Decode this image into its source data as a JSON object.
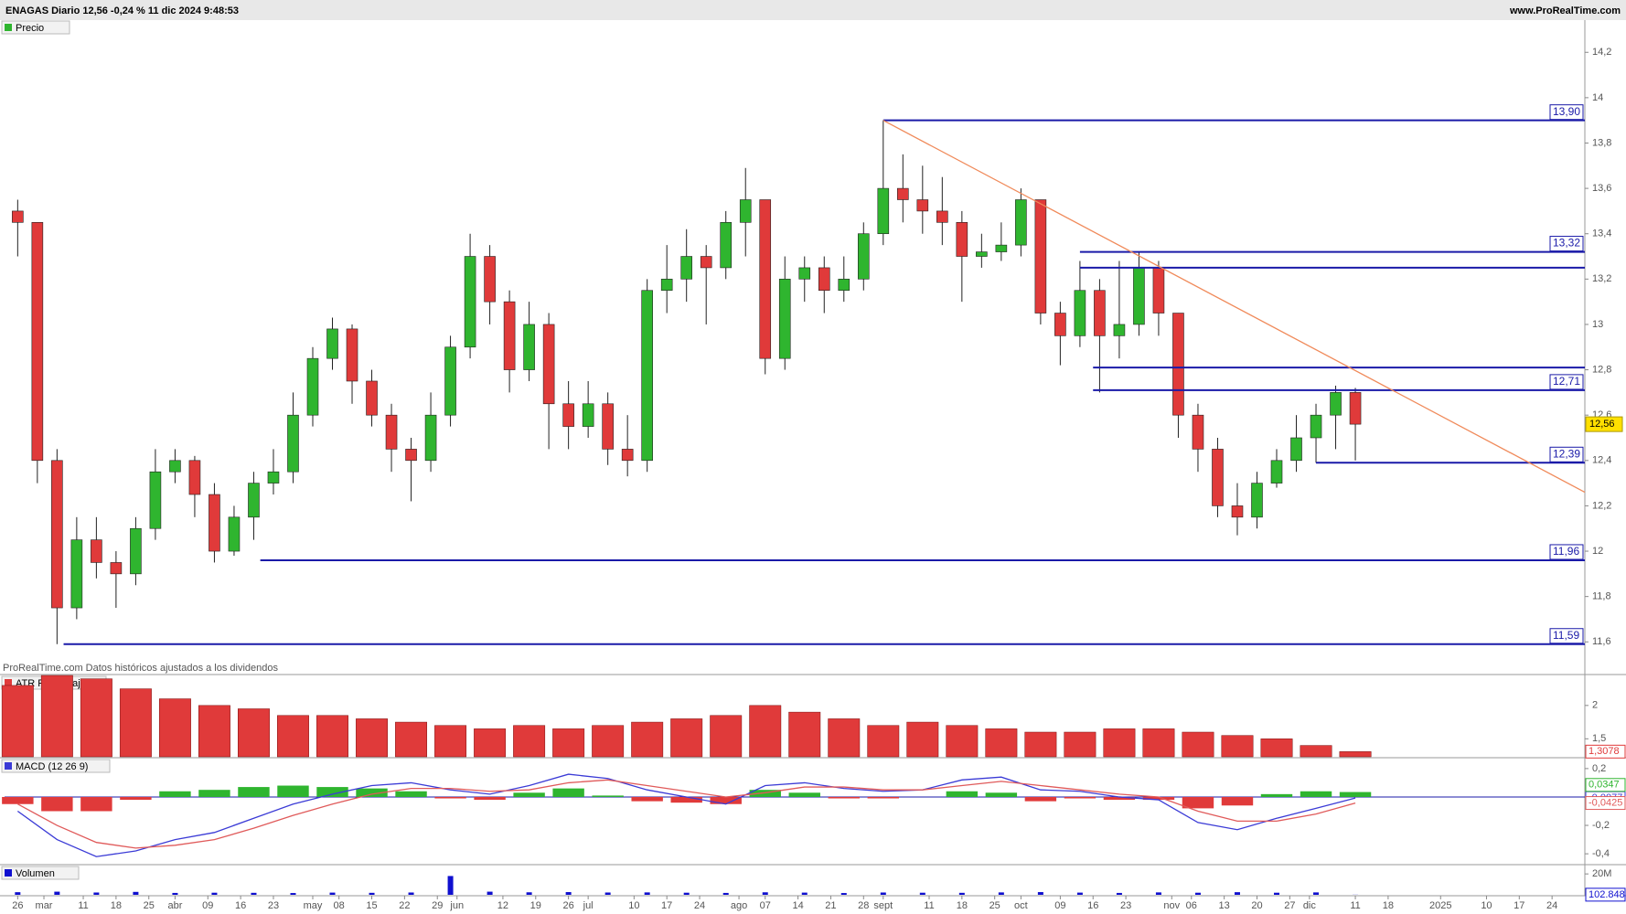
{
  "header": {
    "title": "ENAGAS Diario 12,56 -0,24 % 11 dic 2024 9:48:53",
    "site": "www.ProRealTime.com"
  },
  "chart_data": [
    {
      "type": "candlestick",
      "title": "Precio",
      "note": "ProRealTime.com Datos históricos ajustados a los dividendos",
      "up_color": "#2fb52f",
      "down_color": "#e03a3a",
      "level_color": "#1a1aa8",
      "trend_color": "#f08a5a",
      "xlim": [
        -2,
        239
      ],
      "ylim": [
        11.46,
        14.33
      ],
      "yticks": [
        {
          "value": 11.6,
          "label": "11,6"
        },
        {
          "value": 11.8,
          "label": "11,8"
        },
        12,
        {
          "value": 12.2,
          "label": "12,2"
        },
        {
          "value": 12.4,
          "label": "12,4"
        },
        {
          "value": 12.6,
          "label": "12,6"
        },
        {
          "value": 12.8,
          "label": "12,8"
        },
        13,
        {
          "value": 13.2,
          "label": "13,2"
        },
        {
          "value": 13.4,
          "label": "13,4"
        },
        {
          "value": 13.6,
          "label": "13,6"
        },
        {
          "value": 13.8,
          "label": "13,8"
        },
        14,
        {
          "value": 14.2,
          "label": "14,2"
        }
      ],
      "x": [
        0,
        3,
        6,
        9,
        12,
        15,
        18,
        21,
        24,
        27,
        30,
        33,
        36,
        39,
        42,
        45,
        48,
        51,
        54,
        57,
        60,
        63,
        66,
        69,
        72,
        75,
        78,
        81,
        84,
        87,
        90,
        93,
        96,
        99,
        102,
        105,
        108,
        111,
        114,
        117,
        120,
        123,
        126,
        129,
        132,
        135,
        138,
        141,
        144,
        147,
        150,
        153,
        156,
        159,
        162,
        165,
        168,
        171,
        174,
        177,
        180,
        183,
        186,
        189,
        192,
        195,
        198,
        201,
        204
      ],
      "open": [
        13.5,
        13.45,
        12.4,
        11.75,
        12.05,
        11.95,
        11.9,
        12.1,
        12.35,
        12.4,
        12.25,
        12.0,
        12.15,
        12.3,
        12.35,
        12.6,
        12.85,
        12.98,
        12.75,
        12.6,
        12.45,
        12.4,
        12.6,
        12.9,
        13.3,
        13.1,
        12.8,
        13.0,
        12.65,
        12.55,
        12.65,
        12.45,
        12.4,
        13.15,
        13.2,
        13.3,
        13.25,
        13.45,
        13.55,
        12.85,
        13.2,
        13.25,
        13.15,
        13.2,
        13.4,
        13.6,
        13.55,
        13.5,
        13.45,
        13.3,
        13.32,
        13.35,
        13.55,
        13.05,
        12.95,
        13.15,
        12.95,
        13.0,
        13.25,
        13.05,
        12.6,
        12.45,
        12.2,
        12.15,
        12.3,
        12.4,
        12.5,
        12.6,
        12.7
      ],
      "high": [
        13.55,
        13.45,
        12.45,
        12.15,
        12.15,
        12.0,
        12.15,
        12.45,
        12.45,
        12.42,
        12.3,
        12.2,
        12.35,
        12.45,
        12.7,
        12.9,
        13.03,
        13.0,
        12.8,
        12.65,
        12.5,
        12.7,
        12.95,
        13.4,
        13.35,
        13.15,
        13.1,
        13.05,
        12.75,
        12.75,
        12.7,
        12.6,
        13.2,
        13.35,
        13.42,
        13.35,
        13.5,
        13.69,
        13.55,
        13.3,
        13.3,
        13.3,
        13.3,
        13.45,
        13.9,
        13.75,
        13.7,
        13.65,
        13.5,
        13.4,
        13.45,
        13.6,
        13.55,
        13.1,
        13.28,
        13.2,
        13.28,
        13.32,
        13.28,
        13.05,
        12.65,
        12.5,
        12.3,
        12.35,
        12.45,
        12.6,
        12.65,
        12.73,
        12.72
      ],
      "low": [
        13.3,
        12.3,
        11.59,
        11.7,
        11.88,
        11.75,
        11.85,
        12.05,
        12.3,
        12.15,
        11.95,
        11.98,
        12.05,
        12.25,
        12.3,
        12.55,
        12.8,
        12.65,
        12.55,
        12.35,
        12.22,
        12.35,
        12.55,
        12.85,
        13.0,
        12.7,
        12.75,
        12.45,
        12.45,
        12.5,
        12.38,
        12.33,
        12.35,
        13.05,
        13.1,
        13.0,
        13.2,
        13.3,
        12.78,
        12.8,
        13.1,
        13.05,
        13.1,
        13.15,
        13.35,
        13.45,
        13.4,
        13.35,
        13.1,
        13.25,
        13.28,
        13.3,
        13.0,
        12.82,
        12.9,
        12.7,
        12.85,
        12.95,
        12.95,
        12.5,
        12.35,
        12.15,
        12.07,
        12.1,
        12.28,
        12.35,
        12.39,
        12.45,
        12.4
      ],
      "close": [
        13.45,
        12.4,
        11.75,
        12.05,
        11.95,
        11.9,
        12.1,
        12.35,
        12.4,
        12.25,
        12.0,
        12.15,
        12.3,
        12.35,
        12.6,
        12.85,
        12.98,
        12.75,
        12.6,
        12.45,
        12.4,
        12.6,
        12.9,
        13.3,
        13.1,
        12.8,
        13.0,
        12.65,
        12.55,
        12.65,
        12.45,
        12.4,
        13.15,
        13.2,
        13.3,
        13.25,
        13.45,
        13.55,
        12.85,
        13.2,
        13.25,
        13.15,
        13.2,
        13.4,
        13.6,
        13.55,
        13.5,
        13.45,
        13.3,
        13.32,
        13.35,
        13.55,
        13.05,
        12.95,
        13.15,
        12.95,
        13.0,
        13.25,
        13.05,
        12.6,
        12.45,
        12.2,
        12.15,
        12.3,
        12.4,
        12.5,
        12.6,
        12.7,
        12.56
      ],
      "levels": [
        {
          "value": 13.9,
          "label": "13,90",
          "from": 132
        },
        {
          "value": 13.32,
          "label": "13,32",
          "from": 162
        },
        {
          "value": 13.25,
          "from": 162
        },
        {
          "value": 12.81,
          "from": 164
        },
        {
          "value": 12.71,
          "label": "12,71",
          "from": 164
        },
        {
          "value": 12.39,
          "label": "12,39",
          "from": 198
        },
        {
          "value": 11.96,
          "label": "11,96",
          "from": 37
        },
        {
          "value": 11.59,
          "label": "11,59",
          "from": 7
        }
      ],
      "trend": {
        "x": [
          132,
          239
        ],
        "y": [
          13.9,
          12.26
        ]
      },
      "last": {
        "value": 12.56,
        "label": "12,56"
      }
    },
    {
      "type": "bar",
      "title": "ATR Porcentaje",
      "color": "#e03a3a",
      "xlim": [
        -2,
        239
      ],
      "ylim": [
        1.23,
        2.45
      ],
      "yticks": [
        {
          "value": 1.5,
          "label": "1,5"
        },
        2
      ],
      "x": [
        0,
        6,
        12,
        18,
        24,
        30,
        36,
        42,
        48,
        54,
        60,
        66,
        72,
        78,
        84,
        90,
        96,
        102,
        108,
        114,
        120,
        126,
        132,
        138,
        144,
        150,
        156,
        162,
        168,
        174,
        180,
        186,
        192,
        198,
        204
      ],
      "values": [
        2.3,
        2.45,
        2.4,
        2.25,
        2.1,
        2.0,
        1.95,
        1.85,
        1.85,
        1.8,
        1.75,
        1.7,
        1.65,
        1.7,
        1.65,
        1.7,
        1.75,
        1.8,
        1.85,
        2.0,
        1.9,
        1.8,
        1.7,
        1.75,
        1.7,
        1.65,
        1.6,
        1.6,
        1.65,
        1.65,
        1.6,
        1.55,
        1.5,
        1.4,
        1.3078
      ],
      "last_label": "1,3078"
    },
    {
      "type": "macd",
      "title": "MACD (12 26 9)",
      "zero_color": "#1a1aa8",
      "xlim": [
        -2,
        239
      ],
      "ylim": [
        -0.47,
        0.27
      ],
      "yticks": [
        {
          "value": -0.4,
          "label": "-0,4"
        },
        {
          "value": -0.2,
          "label": "-0,2"
        },
        0,
        {
          "value": 0.2,
          "label": "0,2"
        }
      ],
      "x": [
        0,
        6,
        12,
        18,
        24,
        30,
        36,
        42,
        48,
        54,
        60,
        66,
        72,
        78,
        84,
        90,
        96,
        102,
        108,
        114,
        120,
        126,
        132,
        138,
        144,
        150,
        156,
        162,
        168,
        174,
        180,
        186,
        192,
        198,
        204
      ],
      "series": [
        {
          "name": "MACD",
          "color": "#3b3bd6",
          "values": [
            -0.1,
            -0.3,
            -0.42,
            -0.38,
            -0.3,
            -0.25,
            -0.15,
            -0.05,
            0.02,
            0.08,
            0.1,
            0.05,
            0.02,
            0.08,
            0.16,
            0.13,
            0.05,
            0.0,
            -0.05,
            0.08,
            0.1,
            0.06,
            0.04,
            0.05,
            0.12,
            0.14,
            0.05,
            0.04,
            0.0,
            -0.02,
            -0.18,
            -0.23,
            -0.15,
            -0.08,
            -0.0077
          ],
          "last_label": "-0,0077"
        },
        {
          "name": "Señal",
          "color": "#e05a5a",
          "values": [
            -0.05,
            -0.2,
            -0.32,
            -0.36,
            -0.34,
            -0.3,
            -0.22,
            -0.13,
            -0.05,
            0.02,
            0.06,
            0.06,
            0.04,
            0.05,
            0.1,
            0.12,
            0.08,
            0.04,
            0.0,
            0.03,
            0.07,
            0.07,
            0.05,
            0.05,
            0.08,
            0.11,
            0.08,
            0.05,
            0.02,
            0.0,
            -0.1,
            -0.17,
            -0.17,
            -0.12,
            -0.0425
          ],
          "last_label": "-0,0425"
        }
      ],
      "histogram": {
        "pos_color": "#2fb52f",
        "neg_color": "#e03a3a",
        "values": [
          -0.05,
          -0.1,
          -0.1,
          -0.02,
          0.04,
          0.05,
          0.07,
          0.08,
          0.07,
          0.06,
          0.04,
          -0.01,
          -0.02,
          0.03,
          0.06,
          0.01,
          -0.03,
          -0.04,
          -0.05,
          0.05,
          0.03,
          -0.01,
          -0.01,
          0.0,
          0.04,
          0.03,
          -0.03,
          -0.01,
          -0.02,
          -0.02,
          -0.08,
          -0.06,
          0.02,
          0.04,
          0.0347
        ],
        "last_label": "0,0347"
      }
    },
    {
      "type": "bar",
      "title": "Volumen",
      "color": "#1010d0",
      "xlim": [
        -2,
        239
      ],
      "ylim": [
        0,
        28000000
      ],
      "yticks": [
        {
          "value": 20000000,
          "label": "20M"
        }
      ],
      "x": [
        0,
        6,
        12,
        18,
        24,
        30,
        36,
        42,
        48,
        54,
        60,
        66,
        72,
        78,
        84,
        90,
        96,
        102,
        108,
        114,
        120,
        126,
        132,
        138,
        144,
        150,
        156,
        162,
        168,
        174,
        180,
        186,
        192,
        198,
        204
      ],
      "values": [
        2500000,
        3000000,
        2200000,
        2800000,
        1800000,
        2000000,
        1900000,
        1700000,
        2100000,
        1900000,
        2200000,
        18000000,
        3000000,
        2400000,
        2600000,
        2200000,
        2300000,
        2000000,
        1800000,
        2400000,
        2100000,
        1700000,
        2200000,
        2000000,
        1900000,
        2300000,
        2600000,
        2100000,
        1800000,
        2300000,
        2000000,
        2500000,
        2000000,
        2300000,
        102848
      ],
      "last_label": "102.848",
      "xticks": [
        {
          "value": 0,
          "label": "26"
        },
        {
          "value": 4,
          "label": "mar"
        },
        {
          "value": 10,
          "label": "11"
        },
        {
          "value": 15,
          "label": "18"
        },
        {
          "value": 20,
          "label": "25"
        },
        {
          "value": 24,
          "label": "abr"
        },
        {
          "value": 29,
          "label": "09"
        },
        {
          "value": 34,
          "label": "16"
        },
        {
          "value": 39,
          "label": "23"
        },
        {
          "value": 45,
          "label": "may"
        },
        {
          "value": 49,
          "label": "08"
        },
        {
          "value": 54,
          "label": "15"
        },
        {
          "value": 59,
          "label": "22"
        },
        {
          "value": 64,
          "label": "29"
        },
        {
          "value": 67,
          "label": "jun"
        },
        {
          "value": 74,
          "label": "12"
        },
        {
          "value": 79,
          "label": "19"
        },
        {
          "value": 84,
          "label": "26"
        },
        {
          "value": 87,
          "label": "jul"
        },
        {
          "value": 94,
          "label": "10"
        },
        {
          "value": 99,
          "label": "17"
        },
        {
          "value": 104,
          "label": "24"
        },
        {
          "value": 110,
          "label": "ago"
        },
        {
          "value": 114,
          "label": "07"
        },
        {
          "value": 119,
          "label": "14"
        },
        {
          "value": 124,
          "label": "21"
        },
        {
          "value": 129,
          "label": "28"
        },
        {
          "value": 132,
          "label": "sept"
        },
        {
          "value": 139,
          "label": "11"
        },
        {
          "value": 144,
          "label": "18"
        },
        {
          "value": 149,
          "label": "25"
        },
        {
          "value": 153,
          "label": "oct"
        },
        {
          "value": 159,
          "label": "09"
        },
        {
          "value": 164,
          "label": "16"
        },
        {
          "value": 169,
          "label": "23"
        },
        {
          "value": 176,
          "label": "nov"
        },
        {
          "value": 179,
          "label": "06"
        },
        {
          "value": 184,
          "label": "13"
        },
        {
          "value": 189,
          "label": "20"
        },
        {
          "value": 194,
          "label": "27"
        },
        {
          "value": 197,
          "label": "dic"
        },
        {
          "value": 204,
          "label": "11"
        },
        {
          "value": 209,
          "label": "18"
        },
        {
          "value": 217,
          "label": "2025"
        },
        {
          "value": 224,
          "label": "10"
        },
        {
          "value": 229,
          "label": "17"
        },
        {
          "value": 234,
          "label": "24"
        }
      ]
    }
  ]
}
